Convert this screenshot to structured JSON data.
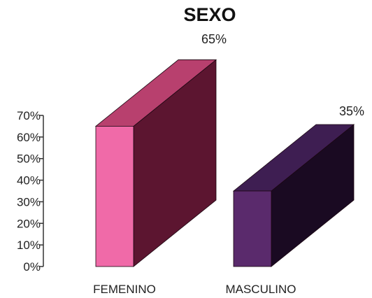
{
  "chart_data": {
    "type": "bar",
    "title": "SEXO",
    "categories": [
      "FEMENINO",
      "MASCULINO"
    ],
    "values": [
      65,
      35
    ],
    "value_labels": [
      "65%",
      "35%"
    ],
    "ylim": [
      0,
      70
    ],
    "yticks": [
      0,
      10,
      20,
      30,
      40,
      50,
      60,
      70
    ],
    "ytick_labels": [
      "0%",
      "10%",
      "20%",
      "30%",
      "40%",
      "50%",
      "60%",
      "70%"
    ],
    "grid": false,
    "three_d": true,
    "colors": {
      "FEMENINO": {
        "front": "#f06aa8",
        "top": "#b8406e",
        "side": "#5c1530"
      },
      "MASCULINO": {
        "front": "#5a2a6c",
        "top": "#3e1e52",
        "side": "#1a0a22"
      }
    }
  }
}
